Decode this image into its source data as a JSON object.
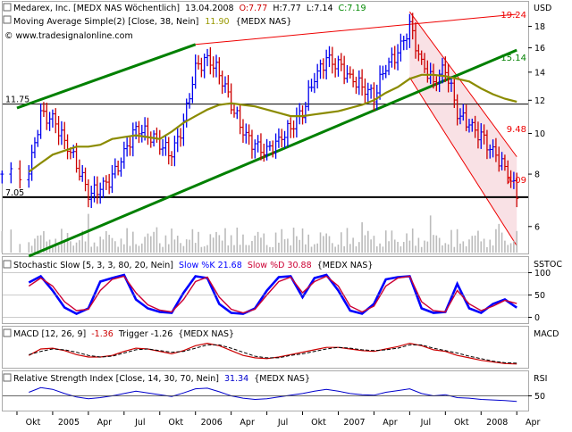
{
  "panes": {
    "price": {
      "title_instrument": "Medarex, Inc. [MEDX NAS  Wöchentlich]",
      "title_date": "13.04.2008",
      "o_text": "O:7.77",
      "h_text": "H:7.77",
      "l_text": "L:7.14",
      "c_text": "C:7.19",
      "ma_label": "Moving Average Simple(2) [Close, 38, Nein]",
      "ma_value": "11.90",
      "ma_symbol": "{MEDX NAS}",
      "copyright": "© www.tradesignalonline.com",
      "unit_label": "USD"
    },
    "stochastic": {
      "label": "Stochastic Slow [5, 3, 3, 80, 20, Nein]",
      "k_label": "Slow %K 21.68",
      "d_label": "Slow %D 30.88",
      "symbol": "{MEDX NAS}",
      "axis_label": "SSTOC"
    },
    "macd": {
      "label": "MACD [12, 26, 9]",
      "value": "-1.36",
      "trigger": "Trigger -1.26",
      "symbol": "{MEDX NAS}",
      "axis_label": "MACD"
    },
    "rsi": {
      "label": "Relative Strength Index [Close, 14, 30, 70, Nein]",
      "value": "31.34",
      "symbol": "{MEDX NAS}",
      "axis_label": "RSI"
    }
  },
  "colors": {
    "bull_bar": "#0000ee",
    "bear_bar": "#cc0000",
    "moving_average": "#8b8b00",
    "trendline": "#008000",
    "channel": "#ee0000",
    "channel_fill": "#f4c8d0",
    "volume": "#bbbbbb",
    "stoch_k": "#0000ff",
    "stoch_d": "#cc0033",
    "macd_line": "#cc0000",
    "trigger_line": "#000000",
    "rsi_line": "#0000cc",
    "o_value": "#cc0000",
    "c_value": "#008800",
    "ma_value": "#999900"
  },
  "chart_data": [
    {
      "type": "line",
      "pane": "price",
      "y_scale": "log",
      "ylim": [
        5.2,
        20.5
      ],
      "x_ticks": [
        "Okt",
        "2005",
        "Apr",
        "Jul",
        "Okt",
        "2006",
        "Apr",
        "Jul",
        "Okt",
        "2007",
        "Apr",
        "Jul",
        "Okt",
        "2008",
        "Apr"
      ],
      "y_ticks": [
        6,
        8,
        10,
        12,
        14,
        16,
        18
      ],
      "horizontal_lines": [
        {
          "value": 11.75,
          "label": "11.75"
        },
        {
          "value": 7.05,
          "label": "7.05"
        }
      ],
      "trendlines": [
        {
          "name": "",
          "color": "green",
          "from": {
            "x": "2004-10",
            "y": 11.5
          },
          "to": {
            "x": "2006-01",
            "y": 16.3
          }
        },
        {
          "name": "",
          "color": "green",
          "from": {
            "x": "2004-11",
            "y": 5.1
          },
          "to": {
            "x": "2008-04",
            "y": 15.8
          }
        },
        {
          "name": "",
          "color": "red",
          "from": {
            "x": "2006-01",
            "y": 16.3
          },
          "to": {
            "x": "2008-04",
            "y": 19.24
          }
        }
      ],
      "channel": {
        "upper": [
          {
            "x": "2007-07",
            "y": 19.5
          },
          {
            "x": "2008-04",
            "y": 8.8
          }
        ],
        "lower": [
          {
            "x": "2007-07",
            "y": 13.6
          },
          {
            "x": "2008-04",
            "y": 5.4
          }
        ]
      },
      "price_labels": [
        "19.24",
        "15.14",
        "9.48",
        "7.09"
      ],
      "series": [
        {
          "name": "Moving Average Simple(2)",
          "x": [
            "2004-11",
            "2004-12",
            "2005-01",
            "2005-02",
            "2005-03",
            "2005-04",
            "2005-05",
            "2005-06",
            "2005-07",
            "2005-08",
            "2005-09",
            "2005-10",
            "2005-11",
            "2005-12",
            "2006-01",
            "2006-02",
            "2006-03",
            "2006-04",
            "2006-05",
            "2006-06",
            "2006-07",
            "2006-08",
            "2006-09",
            "2006-10",
            "2006-11",
            "2006-12",
            "2007-01",
            "2007-02",
            "2007-03",
            "2007-04",
            "2007-05",
            "2007-06",
            "2007-07",
            "2007-08",
            "2007-09",
            "2007-10",
            "2007-11",
            "2007-12",
            "2008-01",
            "2008-02",
            "2008-03",
            "2008-04"
          ],
          "values": [
            8.1,
            8.5,
            8.9,
            9.1,
            9.3,
            9.3,
            9.4,
            9.7,
            9.8,
            9.9,
            9.8,
            9.7,
            10.1,
            10.6,
            11.0,
            11.4,
            11.7,
            11.8,
            11.7,
            11.6,
            11.4,
            11.2,
            11.0,
            11.0,
            11.1,
            11.2,
            11.3,
            11.5,
            11.7,
            12.0,
            12.5,
            12.9,
            13.5,
            13.8,
            13.8,
            13.7,
            13.5,
            13.3,
            12.8,
            12.4,
            12.1,
            11.9
          ]
        },
        {
          "name": "Close",
          "x": [
            "2004-11",
            "2004-12",
            "2005-01",
            "2005-02",
            "2005-03",
            "2005-04",
            "2005-05",
            "2005-06",
            "2005-07",
            "2005-08",
            "2005-09",
            "2005-10",
            "2005-11",
            "2005-12",
            "2006-01",
            "2006-02",
            "2006-03",
            "2006-04",
            "2006-05",
            "2006-06",
            "2006-07",
            "2006-08",
            "2006-09",
            "2006-10",
            "2006-11",
            "2006-12",
            "2007-01",
            "2007-02",
            "2007-03",
            "2007-04",
            "2007-05",
            "2007-06",
            "2007-07",
            "2007-08",
            "2007-09",
            "2007-10",
            "2007-11",
            "2007-12",
            "2008-01",
            "2008-02",
            "2008-03",
            "2008-04"
          ],
          "values": [
            8.0,
            11.0,
            10.8,
            9.6,
            8.5,
            7.2,
            7.4,
            7.8,
            8.9,
            10.3,
            10.0,
            9.5,
            8.9,
            10.5,
            14.2,
            15.1,
            14.0,
            11.8,
            10.1,
            9.3,
            9.0,
            9.6,
            10.4,
            11.3,
            13.6,
            15.0,
            14.5,
            13.5,
            13.0,
            12.3,
            14.5,
            15.5,
            17.9,
            14.6,
            13.3,
            14.4,
            11.2,
            10.5,
            9.8,
            9.0,
            8.3,
            7.19
          ]
        }
      ]
    },
    {
      "type": "line",
      "pane": "stochastic",
      "ylim": [
        -5,
        105
      ],
      "y_ticks": [
        0,
        50,
        100
      ],
      "series": [
        {
          "name": "Slow %K",
          "x": [
            "2004-11",
            "2004-12",
            "2005-01",
            "2005-02",
            "2005-03",
            "2005-04",
            "2005-05",
            "2005-06",
            "2005-07",
            "2005-08",
            "2005-09",
            "2005-10",
            "2005-11",
            "2005-12",
            "2006-01",
            "2006-02",
            "2006-03",
            "2006-04",
            "2006-05",
            "2006-06",
            "2006-07",
            "2006-08",
            "2006-09",
            "2006-10",
            "2006-11",
            "2006-12",
            "2007-01",
            "2007-02",
            "2007-03",
            "2007-04",
            "2007-05",
            "2007-06",
            "2007-07",
            "2007-08",
            "2007-09",
            "2007-10",
            "2007-11",
            "2007-12",
            "2008-01",
            "2008-02",
            "2008-03",
            "2008-04"
          ],
          "values": [
            78,
            92,
            60,
            22,
            8,
            20,
            80,
            88,
            95,
            40,
            20,
            12,
            10,
            55,
            92,
            88,
            30,
            10,
            8,
            20,
            60,
            90,
            92,
            45,
            88,
            95,
            60,
            15,
            8,
            30,
            85,
            90,
            92,
            20,
            10,
            12,
            75,
            20,
            10,
            30,
            40,
            21.68
          ]
        },
        {
          "name": "Slow %D",
          "x": [
            "2004-11",
            "2004-12",
            "2005-01",
            "2005-02",
            "2005-03",
            "2005-04",
            "2005-05",
            "2005-06",
            "2005-07",
            "2005-08",
            "2005-09",
            "2005-10",
            "2005-11",
            "2005-12",
            "2006-01",
            "2006-02",
            "2006-03",
            "2006-04",
            "2006-05",
            "2006-06",
            "2006-07",
            "2006-08",
            "2006-09",
            "2006-10",
            "2006-11",
            "2006-12",
            "2007-01",
            "2007-02",
            "2007-03",
            "2007-04",
            "2007-05",
            "2007-06",
            "2007-07",
            "2007-08",
            "2007-09",
            "2007-10",
            "2007-11",
            "2007-12",
            "2008-01",
            "2008-02",
            "2008-03",
            "2008-04"
          ],
          "values": [
            70,
            88,
            70,
            35,
            15,
            18,
            60,
            85,
            92,
            55,
            28,
            16,
            12,
            40,
            80,
            90,
            45,
            18,
            10,
            18,
            50,
            80,
            90,
            55,
            80,
            92,
            70,
            25,
            12,
            25,
            70,
            88,
            92,
            35,
            15,
            12,
            60,
            30,
            15,
            25,
            38,
            30.88
          ]
        }
      ]
    },
    {
      "type": "line",
      "pane": "macd",
      "series": [
        {
          "name": "MACD",
          "x": [
            "2004-11",
            "2004-12",
            "2005-01",
            "2005-02",
            "2005-03",
            "2005-04",
            "2005-05",
            "2005-06",
            "2005-07",
            "2005-08",
            "2005-09",
            "2005-10",
            "2005-11",
            "2005-12",
            "2006-01",
            "2006-02",
            "2006-03",
            "2006-04",
            "2006-05",
            "2006-06",
            "2006-07",
            "2006-08",
            "2006-09",
            "2006-10",
            "2006-11",
            "2006-12",
            "2007-01",
            "2007-02",
            "2007-03",
            "2007-04",
            "2007-05",
            "2007-06",
            "2007-07",
            "2007-08",
            "2007-09",
            "2007-10",
            "2007-11",
            "2007-12",
            "2008-01",
            "2008-02",
            "2008-03",
            "2008-04"
          ],
          "values": [
            -0.3,
            0.5,
            0.6,
            0.3,
            -0.2,
            -0.5,
            -0.5,
            -0.3,
            0.2,
            0.6,
            0.5,
            0.2,
            -0.1,
            0.3,
            0.9,
            1.2,
            0.9,
            0.3,
            -0.3,
            -0.6,
            -0.7,
            -0.5,
            -0.2,
            0.1,
            0.4,
            0.7,
            0.7,
            0.5,
            0.3,
            0.2,
            0.5,
            0.8,
            1.2,
            0.9,
            0.4,
            0.2,
            -0.3,
            -0.6,
            -0.9,
            -1.1,
            -1.3,
            -1.36
          ]
        },
        {
          "name": "Trigger",
          "x": [
            "2004-11",
            "2004-12",
            "2005-01",
            "2005-02",
            "2005-03",
            "2005-04",
            "2005-05",
            "2005-06",
            "2005-07",
            "2005-08",
            "2005-09",
            "2005-10",
            "2005-11",
            "2005-12",
            "2006-01",
            "2006-02",
            "2006-03",
            "2006-04",
            "2006-05",
            "2006-06",
            "2006-07",
            "2006-08",
            "2006-09",
            "2006-10",
            "2006-11",
            "2006-12",
            "2007-01",
            "2007-02",
            "2007-03",
            "2007-04",
            "2007-05",
            "2007-06",
            "2007-07",
            "2007-08",
            "2007-09",
            "2007-10",
            "2007-11",
            "2007-12",
            "2008-01",
            "2008-02",
            "2008-03",
            "2008-04"
          ],
          "values": [
            -0.2,
            0.2,
            0.5,
            0.4,
            0.1,
            -0.3,
            -0.5,
            -0.4,
            0.0,
            0.4,
            0.5,
            0.3,
            0.1,
            0.2,
            0.6,
            1.0,
            1.0,
            0.6,
            0.1,
            -0.4,
            -0.6,
            -0.6,
            -0.3,
            -0.1,
            0.2,
            0.5,
            0.7,
            0.6,
            0.4,
            0.3,
            0.4,
            0.6,
            1.0,
            1.0,
            0.6,
            0.3,
            0.0,
            -0.4,
            -0.7,
            -1.0,
            -1.2,
            -1.26
          ]
        }
      ]
    },
    {
      "type": "line",
      "pane": "rsi",
      "ylim": [
        0,
        100
      ],
      "y_ticks": [
        50
      ],
      "series": [
        {
          "name": "RSI",
          "x": [
            "2004-11",
            "2004-12",
            "2005-01",
            "2005-02",
            "2005-03",
            "2005-04",
            "2005-05",
            "2005-06",
            "2005-07",
            "2005-08",
            "2005-09",
            "2005-10",
            "2005-11",
            "2005-12",
            "2006-01",
            "2006-02",
            "2006-03",
            "2006-04",
            "2006-05",
            "2006-06",
            "2006-07",
            "2006-08",
            "2006-09",
            "2006-10",
            "2006-11",
            "2006-12",
            "2007-01",
            "2007-02",
            "2007-03",
            "2007-04",
            "2007-05",
            "2007-06",
            "2007-07",
            "2007-08",
            "2007-09",
            "2007-10",
            "2007-11",
            "2007-12",
            "2008-01",
            "2008-02",
            "2008-03",
            "2008-04"
          ],
          "values": [
            62,
            78,
            72,
            58,
            46,
            40,
            44,
            50,
            58,
            66,
            60,
            54,
            48,
            60,
            74,
            76,
            64,
            50,
            42,
            38,
            40,
            46,
            52,
            58,
            66,
            72,
            66,
            58,
            54,
            52,
            62,
            68,
            74,
            58,
            50,
            54,
            44,
            42,
            38,
            36,
            34,
            31.34
          ]
        }
      ]
    }
  ]
}
